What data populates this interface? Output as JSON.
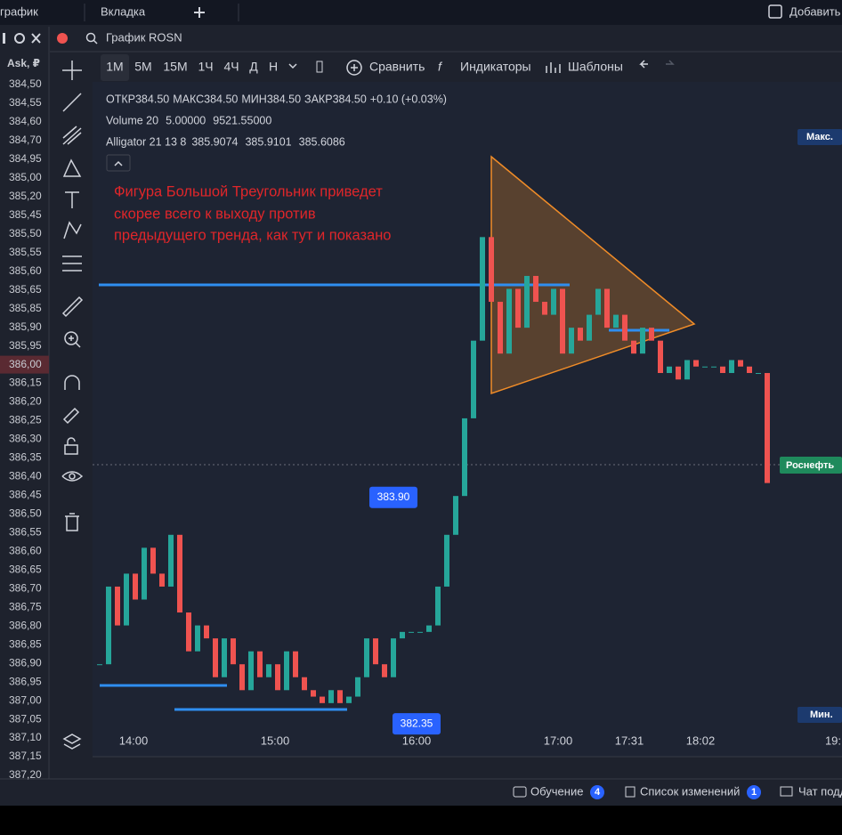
{
  "tabs": {
    "first": "график",
    "second": "Вкладка",
    "add": "Добавить"
  },
  "ask_panel": {
    "header": "Ask, ₽",
    "prices": [
      "384,50",
      "384,55",
      "384,60",
      "384,70",
      "384,95",
      "385,00",
      "385,20",
      "385,45",
      "385,50",
      "385,55",
      "385,60",
      "385,65",
      "385,85",
      "385,90",
      "385,95",
      "386,00",
      "386,15",
      "386,20",
      "386,25",
      "386,30",
      "386,35",
      "386,40",
      "386,45",
      "386,50",
      "386,55",
      "386,60",
      "386,65",
      "386,70",
      "386,75",
      "386,80",
      "386,85",
      "386,90",
      "386,95",
      "387,00",
      "387,05",
      "387,10",
      "387,15",
      "387,20"
    ]
  },
  "chart_header": {
    "title": "График ROSN"
  },
  "toolbar": {
    "intervals": [
      "1M",
      "5M",
      "15M",
      "1Ч",
      "4Ч",
      "Д",
      "Н"
    ],
    "compare": "Сравнить",
    "indicators": "Индикаторы",
    "templates": "Шаблоны"
  },
  "legend": {
    "ohlc": [
      {
        "label": "ОТКР",
        "value": "384.50"
      },
      {
        "label": "МАКС",
        "value": "384.50"
      },
      {
        "label": "МИН",
        "value": "384.50"
      },
      {
        "label": "ЗАКР",
        "value": "384.50"
      }
    ],
    "change": "+0.10 (+0.03%)",
    "volume": {
      "name": "Volume 20",
      "values": [
        "5.00000",
        "9521.55000"
      ]
    },
    "alligator": {
      "name": "Alligator 21 13 8",
      "values": [
        "385.9074",
        "385.9101",
        "385.6086"
      ]
    }
  },
  "annotation": [
    "Фигура Большой Треугольник приведет",
    "скорее всего к выходу против",
    "предыдущего тренда, как тут и показано"
  ],
  "chart_data": {
    "type": "candlestick",
    "values": [
      382.7,
      383.3,
      383.0,
      383.4,
      383.2,
      383.6,
      383.4,
      383.3,
      383.7,
      383.1,
      382.8,
      383.0,
      382.9,
      382.6,
      382.9,
      382.7,
      382.5,
      382.8,
      382.6,
      382.7,
      382.5,
      382.8,
      382.6,
      382.5,
      382.45,
      382.4,
      382.5,
      382.4,
      382.45,
      382.6,
      382.9,
      382.7,
      382.6,
      382.9,
      382.95,
      382.95,
      382.95,
      383.0,
      383.3,
      383.7,
      384.0,
      384.6,
      385.2,
      386.0,
      385.5,
      385.1,
      385.6,
      385.3,
      385.7,
      385.5,
      385.4,
      385.6,
      385.1,
      385.3,
      385.2,
      385.4,
      385.6,
      385.3,
      385.4,
      385.2,
      385.1,
      385.3,
      385.2,
      384.95,
      385.0,
      384.9,
      385.05,
      385.0,
      385.0,
      385.0,
      384.95,
      385.05,
      385.0,
      384.95,
      384.95,
      384.1
    ],
    "ylim": [
      382.0,
      386.8
    ],
    "up_color": "#26a69a",
    "down_color": "#ef5350",
    "price_labels": [
      {
        "value": 383.9,
        "label": "383.90"
      },
      {
        "value": 382.35,
        "label": "382.35"
      }
    ],
    "time_labels": [
      "14:00",
      "15:00",
      "16:00",
      "17:00",
      "17:31",
      "18:02",
      "19:"
    ]
  },
  "axis_tags": {
    "max": "Макс.",
    "ticker": "Роснефть",
    "min": "Мин."
  },
  "footer": {
    "learning": "Обучение",
    "learning_count": "4",
    "changes": "Список изменений",
    "changes_count": "1",
    "chat": "Чат подд"
  }
}
